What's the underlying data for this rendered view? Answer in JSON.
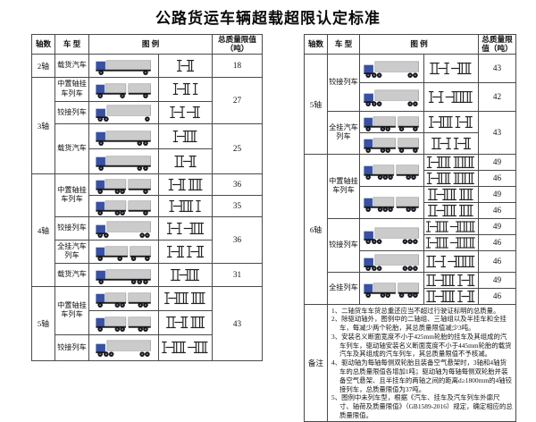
{
  "title": "公路货运车辆超载超限认定标准",
  "headers": {
    "axles": "轴数",
    "type": "车 型",
    "legend": "图 例",
    "limit": "总质量限值（吨）"
  },
  "colors": {
    "cab": "#3851a3",
    "body": "#cbcbcb",
    "body_stroke": "#969696",
    "chassis": "#1c1c1c",
    "wheel": "#14141e",
    "diagram_stroke": "#222222",
    "border": "#4a4a4a"
  },
  "left_table": {
    "rows": [
      {
        "ax": "2轴",
        "axSpan": 1,
        "type": "载货汽车",
        "typeSpan": 1,
        "truck": "cargo",
        "code": "I-H",
        "val": "18",
        "valSpan": 1
      },
      {
        "ax": "3轴",
        "axSpan": 4,
        "type": "中置轴挂车列车",
        "typeSpan": 1,
        "truck": "mid",
        "code": "I-H I",
        "val": "27",
        "valSpan": 2
      },
      {
        "type": "铰接列车",
        "typeSpan": 1,
        "truck": "semi",
        "code": "I-I -H"
      },
      {
        "type": "载货汽车",
        "typeSpan": 2,
        "truck": "cargo",
        "code": "I-HH",
        "val": "25",
        "valSpan": 2
      },
      {
        "truck": "cargo",
        "code": "II-H"
      },
      {
        "ax": "4轴",
        "axSpan": 5,
        "type": "中置轴挂车列车",
        "typeSpan": 2,
        "truck": "mid",
        "code": "I-H HH",
        "val": "36",
        "valSpan": 1
      },
      {
        "truck": "mid",
        "code": "I-HH I",
        "val": "35",
        "valSpan": 1
      },
      {
        "type": "铰接列车",
        "typeSpan": 1,
        "truck": "semi",
        "code": "I-I -HH",
        "val": "36",
        "valSpan": 2
      },
      {
        "type": "全挂汽车列车",
        "typeSpan": 1,
        "truck": "full",
        "code": "I-H I-H"
      },
      {
        "type": "载货汽车",
        "typeSpan": 1,
        "truck": "cargo",
        "code": "II-HH",
        "val": "31",
        "valSpan": 1
      },
      {
        "ax": "5轴",
        "axSpan": 3,
        "type": "中置轴挂车列车",
        "typeSpan": 2,
        "truck": "mid",
        "code": "I-HH HH",
        "val": "43",
        "valSpan": 3
      },
      {
        "truck": "mid",
        "code": "II-H HH"
      },
      {
        "type": "铰接列车",
        "typeSpan": 1,
        "truck": "semi",
        "code": "I-HH -HH"
      }
    ]
  },
  "right_table": {
    "rows": [
      {
        "ax": "5轴",
        "axSpan": 4,
        "type": "铰接列车",
        "typeSpan": 2,
        "truck": "semi",
        "code": "II-I -HH",
        "val": "43",
        "valSpan": 1
      },
      {
        "truck": "semi",
        "code": "I-I -HHH",
        "val": "42",
        "valSpan": 1
      },
      {
        "type": "全挂汽车列车",
        "typeSpan": 2,
        "truck": "full",
        "code": "I-HH I-H",
        "val": "43",
        "valSpan": 2
      },
      {
        "truck": "full",
        "code": "II-I I-H"
      },
      {
        "ax": "6轴",
        "axSpan": 9,
        "type": "中置轴挂车列车",
        "typeSpan": 4,
        "truck": "mid",
        "truckSpan": 2,
        "code": "I-HH HHH",
        "val": "49",
        "valSpan": 1
      },
      {
        "code": "I-HH HHH",
        "val": "46",
        "valSpan": 1
      },
      {
        "truck": "mid",
        "truckSpan": 2,
        "code": "II-HH HH",
        "val": "49",
        "valSpan": 1
      },
      {
        "code": "II-HH HH",
        "val": "46",
        "valSpan": 1
      },
      {
        "type": "铰接列车",
        "typeSpan": 3,
        "truck": "semi",
        "truckSpan": 2,
        "code": "I-HH -HHH",
        "val": "49",
        "valSpan": 1
      },
      {
        "code": "I-HH -HHH",
        "val": "46",
        "valSpan": 1
      },
      {
        "truck": "semi",
        "code": "II-I -HHH",
        "val": "46",
        "valSpan": 1
      },
      {
        "type": "全挂列车",
        "typeSpan": 2,
        "truck": "full",
        "truckSpan": 2,
        "code": "II-HH I-H",
        "val": "49",
        "valSpan": 1
      },
      {
        "code": "II-HH I-H",
        "val": "46",
        "valSpan": 1
      }
    ],
    "note_label": "备注",
    "notes": [
      "1、二轴货车车货总重还应当不超过行驶证标明的总质量。",
      "2、除驱动轴外，图例中的二轴组、三轴组以及半挂车和全挂车，每减少两个轮胎，其总质量限值减少3吨。",
      "3、安装名义断面宽度不小于425mm轮胎的挂车及其组成的汽车列车，驱动轴安装名义断面宽度不小于445mm轮胎的载货汽车及其组成的汽车列车，其总质量限值不予核减。",
      "4、驱动轴为每轴每侧双轮胎且装备空气悬架时，3轴和4轴货车的总质量限值各增加1吨；驱动轴为每轴每侧双轮胎并装备空气悬架、且半挂车的两轴之间的距离d≥1800mm的4轴铰接列车，总质量限值为37吨。",
      "5、图例中未列车型，根据《汽车、挂车及汽车列车外廓尺寸、轴荷及质量限值》（GB1589-2016）规定，确定相应的总质量限值。"
    ]
  }
}
